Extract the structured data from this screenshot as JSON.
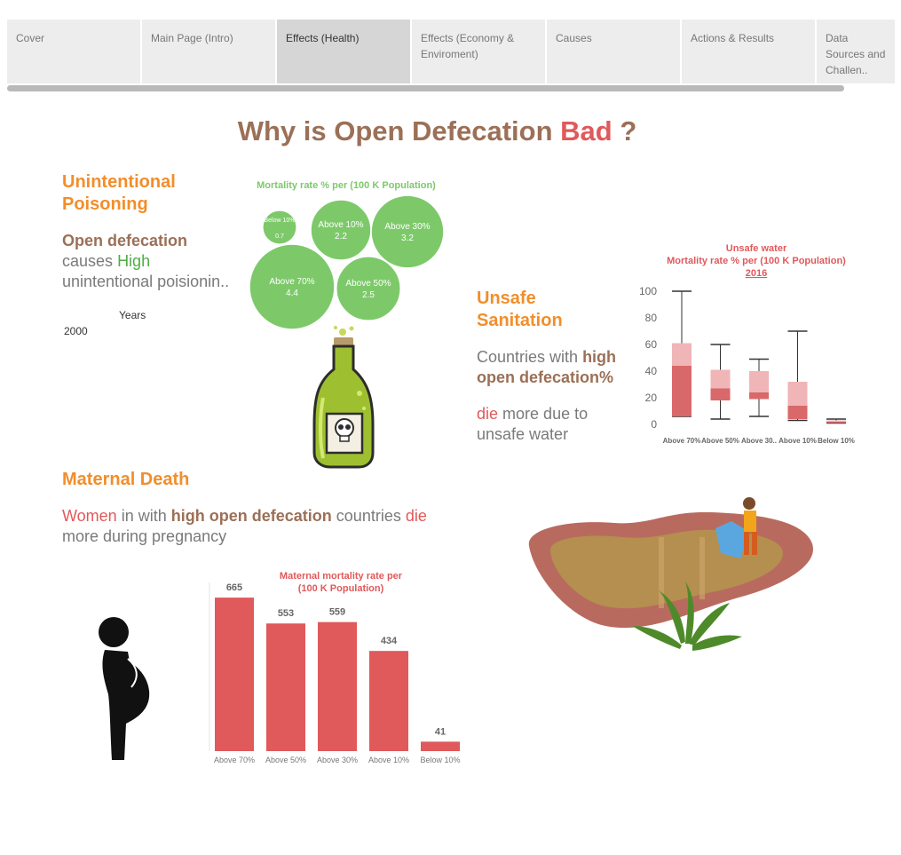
{
  "tabs": [
    "Cover",
    "Main Page (Intro)",
    "Effects (Health)",
    "Effects (Economy & Enviroment)",
    "Causes",
    "Actions & Results",
    "Data Sources and Challen.."
  ],
  "page_title": {
    "prefix": "Why is Open Defecation",
    "highlight": "Bad",
    "suffix": "?"
  },
  "poisoning": {
    "heading_line1": "Unintentional",
    "heading_line2": "Poisoning",
    "text_strong": "Open defecation",
    "text_causes": "causes",
    "text_high": "High",
    "text_rest": "unintentional poisionin..",
    "years_label": "Years",
    "year_value": "2000"
  },
  "sanitation": {
    "heading_line1": "Unsafe",
    "heading_line2": "Sanitation",
    "text_plain": "Countries with",
    "text_strong1": "high",
    "text_strong2": "open defecation%",
    "text_die": "die",
    "text_rest1": "more due to",
    "text_rest2": "unsafe water"
  },
  "maternal": {
    "heading": "Maternal Death",
    "text_women": "Women",
    "text_in": "in with",
    "text_strong": "high open defecation",
    "text_countries": "countries",
    "text_die": "die",
    "text_rest": "more during pregnancy"
  },
  "colors": {
    "accent_orange": "#f28e2b",
    "brown": "#9b7057",
    "red": "#e0595b",
    "green_bubble": "#7dc96a",
    "box_dark": "#d9686a",
    "box_light": "#f0b5b7"
  },
  "icons": [
    "poison-bottle-icon",
    "pregnant-woman-icon",
    "water-puddle-illustration"
  ],
  "chart_data": [
    {
      "type": "bubble",
      "title": "Mortality rate % per (100 K Population)",
      "series": [
        {
          "name": "Below 10%",
          "value": 0.7
        },
        {
          "name": "Above 10%",
          "value": 2.2
        },
        {
          "name": "Above 30%",
          "value": 3.2
        },
        {
          "name": "Above 70%",
          "value": 4.4
        },
        {
          "name": "Above 50%",
          "value": 2.5
        }
      ]
    },
    {
      "type": "boxplot",
      "title_line1": "Unsafe water",
      "title_line2": "Mortality rate % per (100 K Population)",
      "title_year": "2016",
      "categories": [
        "Above 70%",
        "Above 50%",
        "Above 30..",
        "Above 10%",
        "Below 10%"
      ],
      "y_ticks": [
        "0",
        "20",
        "40",
        "60",
        "80",
        "100"
      ],
      "ylim": [
        0,
        100
      ],
      "boxes": [
        {
          "min": 6,
          "q1": 6,
          "median": 44,
          "q3": 61,
          "max": 100
        },
        {
          "min": 4,
          "q1": 18,
          "median": 27,
          "q3": 41,
          "max": 60
        },
        {
          "min": 6,
          "q1": 19,
          "median": 24,
          "q3": 40,
          "max": 49
        },
        {
          "min": 3,
          "q1": 4,
          "median": 14,
          "q3": 32,
          "max": 70
        },
        {
          "min": 1,
          "q1": 1,
          "median": 2,
          "q3": 3,
          "max": 4
        }
      ]
    },
    {
      "type": "bar",
      "title_line1": "Maternal mortality rate  per",
      "title_line2": "(100 K Population)",
      "categories": [
        "Above 70%",
        "Above 50%",
        "Above 30%",
        "Above 10%",
        "Below 10%"
      ],
      "values": [
        665,
        553,
        559,
        434,
        41
      ],
      "ylim": [
        0,
        700
      ]
    }
  ]
}
